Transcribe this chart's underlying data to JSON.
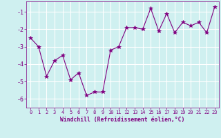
{
  "x": [
    0,
    1,
    2,
    3,
    4,
    5,
    6,
    7,
    8,
    9,
    10,
    11,
    12,
    13,
    14,
    15,
    16,
    17,
    18,
    19,
    20,
    21,
    22,
    23
  ],
  "y": [
    -2.5,
    -3.0,
    -4.7,
    -3.8,
    -3.5,
    -4.9,
    -4.5,
    -5.8,
    -5.6,
    -5.6,
    -3.2,
    -3.0,
    -1.9,
    -1.9,
    -2.0,
    -0.8,
    -2.1,
    -1.1,
    -2.2,
    -1.6,
    -1.8,
    -1.6,
    -2.2,
    -0.7
  ],
  "line_color": "#800080",
  "marker": "*",
  "marker_size": 4,
  "bg_color": "#cff0f0",
  "grid_color": "#ffffff",
  "xlabel": "Windchill (Refroidissement éolien,°C)",
  "xlabel_color": "#800080",
  "tick_color": "#800080",
  "ylim": [
    -6.5,
    -0.4
  ],
  "xlim": [
    -0.5,
    23.5
  ],
  "yticks": [
    -6,
    -5,
    -4,
    -3,
    -2,
    -1
  ],
  "xticks": [
    0,
    1,
    2,
    3,
    4,
    5,
    6,
    7,
    8,
    9,
    10,
    11,
    12,
    13,
    14,
    15,
    16,
    17,
    18,
    19,
    20,
    21,
    22,
    23
  ]
}
